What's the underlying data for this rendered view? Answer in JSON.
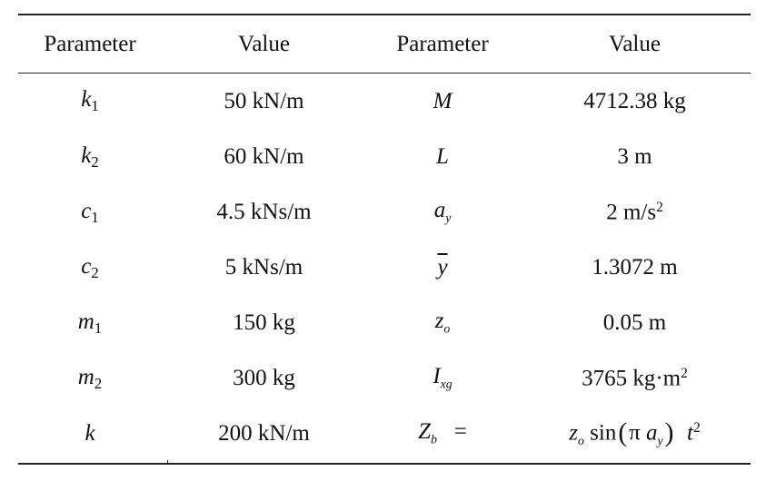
{
  "headers": [
    "Parameter",
    "Value",
    "Parameter",
    "Value"
  ],
  "rows": [
    {
      "p1": {
        "base": "k",
        "sub": "1"
      },
      "v1": "50 kN/m",
      "p2": {
        "base": "M"
      },
      "v2": {
        "text": "4712.38 kg"
      }
    },
    {
      "p1": {
        "base": "k",
        "sub": "2"
      },
      "v1": "60 kN/m",
      "p2": {
        "base": "L"
      },
      "v2": {
        "text": "3 m"
      }
    },
    {
      "p1": {
        "base": "c",
        "sub": "1"
      },
      "v1": "4.5 kNs/m",
      "p2": {
        "base": "a",
        "sub": "y"
      },
      "v2": {
        "text": "2 m/s",
        "sup": "2"
      }
    },
    {
      "p1": {
        "base": "c",
        "sub": "2"
      },
      "v1": "5 kNs/m",
      "p2": {
        "base": "y"
      },
      "v2": {
        "text": "1.3072 m"
      }
    },
    {
      "p1": {
        "base": "m",
        "sub": "1"
      },
      "v1": "150 kg",
      "p2": {
        "base": "z",
        "sub": "o"
      },
      "v2": {
        "text": "0.05 m"
      }
    },
    {
      "p1": {
        "base": "m",
        "sub": "2"
      },
      "v1": "300 kg",
      "p2": {
        "base": "I",
        "sub": "xg"
      },
      "v2": {
        "text": "3765 kg·m",
        "sup": "2"
      }
    },
    {
      "p1": {
        "base": "k"
      },
      "v1": "200 kN/m",
      "p2": {
        "base": "Z",
        "sub": "b",
        "suffix": "="
      },
      "v2": {
        "z": "z",
        "z_sub": "o",
        "fn": "sin",
        "lparen": "(",
        "pi": "π",
        "a": "a",
        "a_sub": "y",
        "rparen": ")",
        "t": "t",
        "t_sup": "2"
      }
    }
  ]
}
